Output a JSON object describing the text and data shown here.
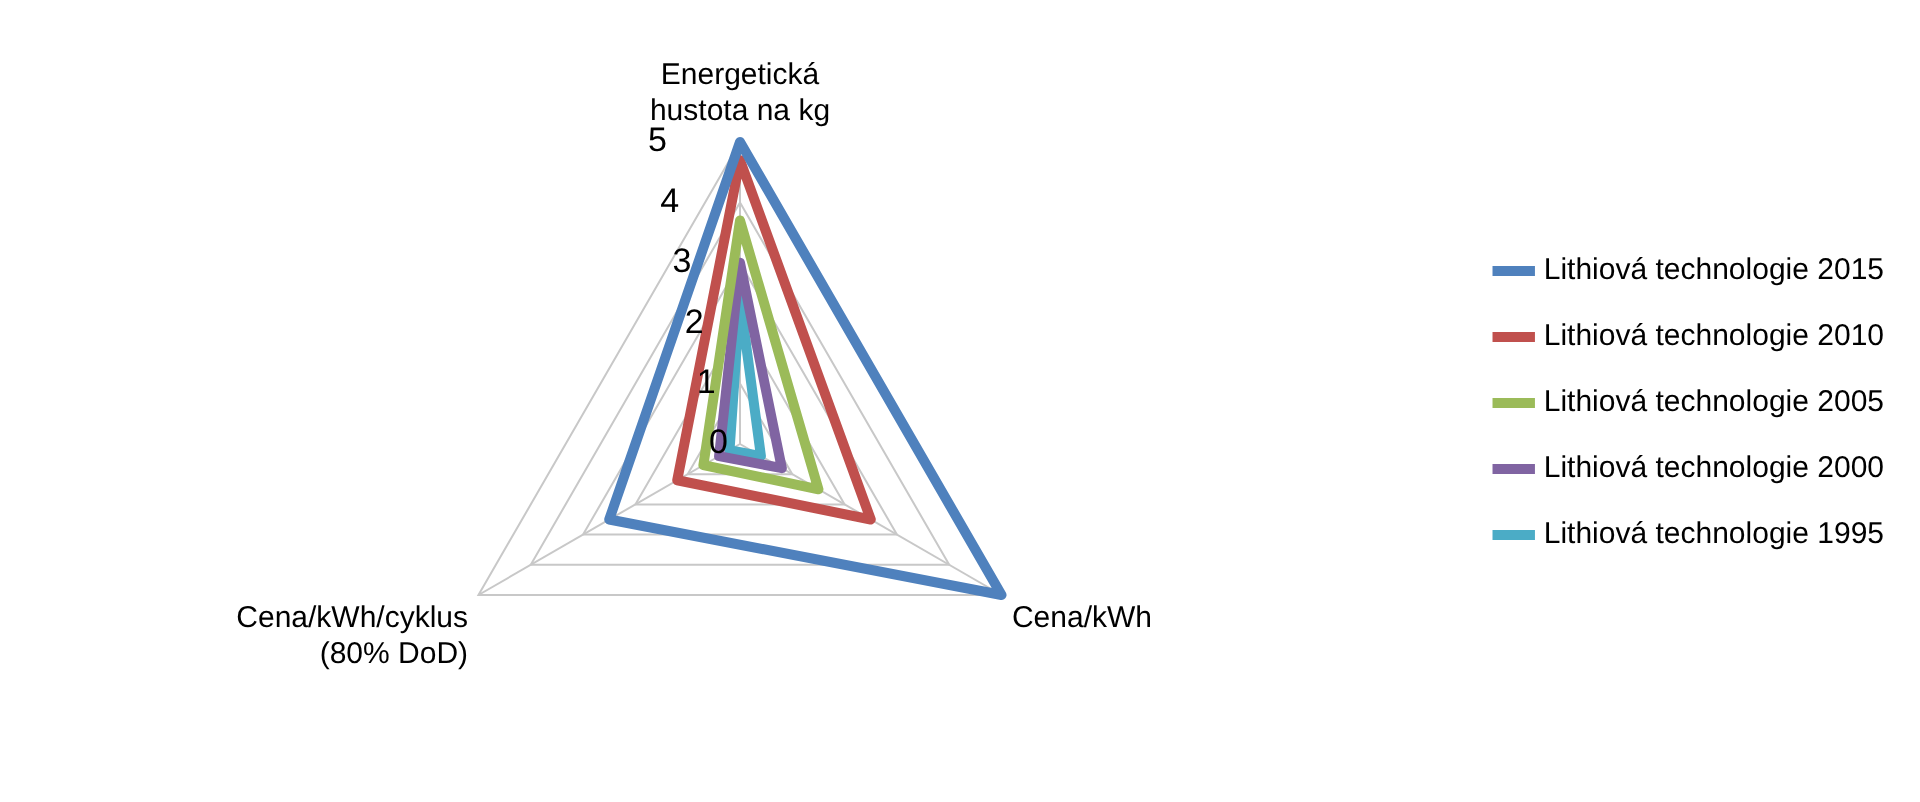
{
  "chart_data": {
    "type": "radar",
    "categories": [
      "Energetická\nhustota na kg",
      "Cena/kWh",
      "Cena/kWh/cyklus\n(80% DoD)"
    ],
    "series": [
      {
        "name": "Lithiová technologie 2015",
        "color": "#4f81bd",
        "values": [
          5,
          5,
          2.5
        ]
      },
      {
        "name": "Lithiová technologie 2010",
        "color": "#c0504d",
        "values": [
          4.7,
          2.5,
          1.2
        ]
      },
      {
        "name": "Lithiová technologie 2005",
        "color": "#9bbb59",
        "values": [
          3.7,
          1.5,
          0.7
        ]
      },
      {
        "name": "Lithiová technologie 2000",
        "color": "#8064a2",
        "values": [
          3,
          0.8,
          0.4
        ]
      },
      {
        "name": "Lithiová technologie 1995",
        "color": "#4bacc6",
        "values": [
          2.4,
          0.4,
          0.2
        ]
      }
    ],
    "ylim": [
      0,
      5
    ],
    "yticks": [
      0,
      1,
      2,
      3,
      4,
      5
    ],
    "grid": true,
    "legend": "right",
    "marker": "none"
  }
}
